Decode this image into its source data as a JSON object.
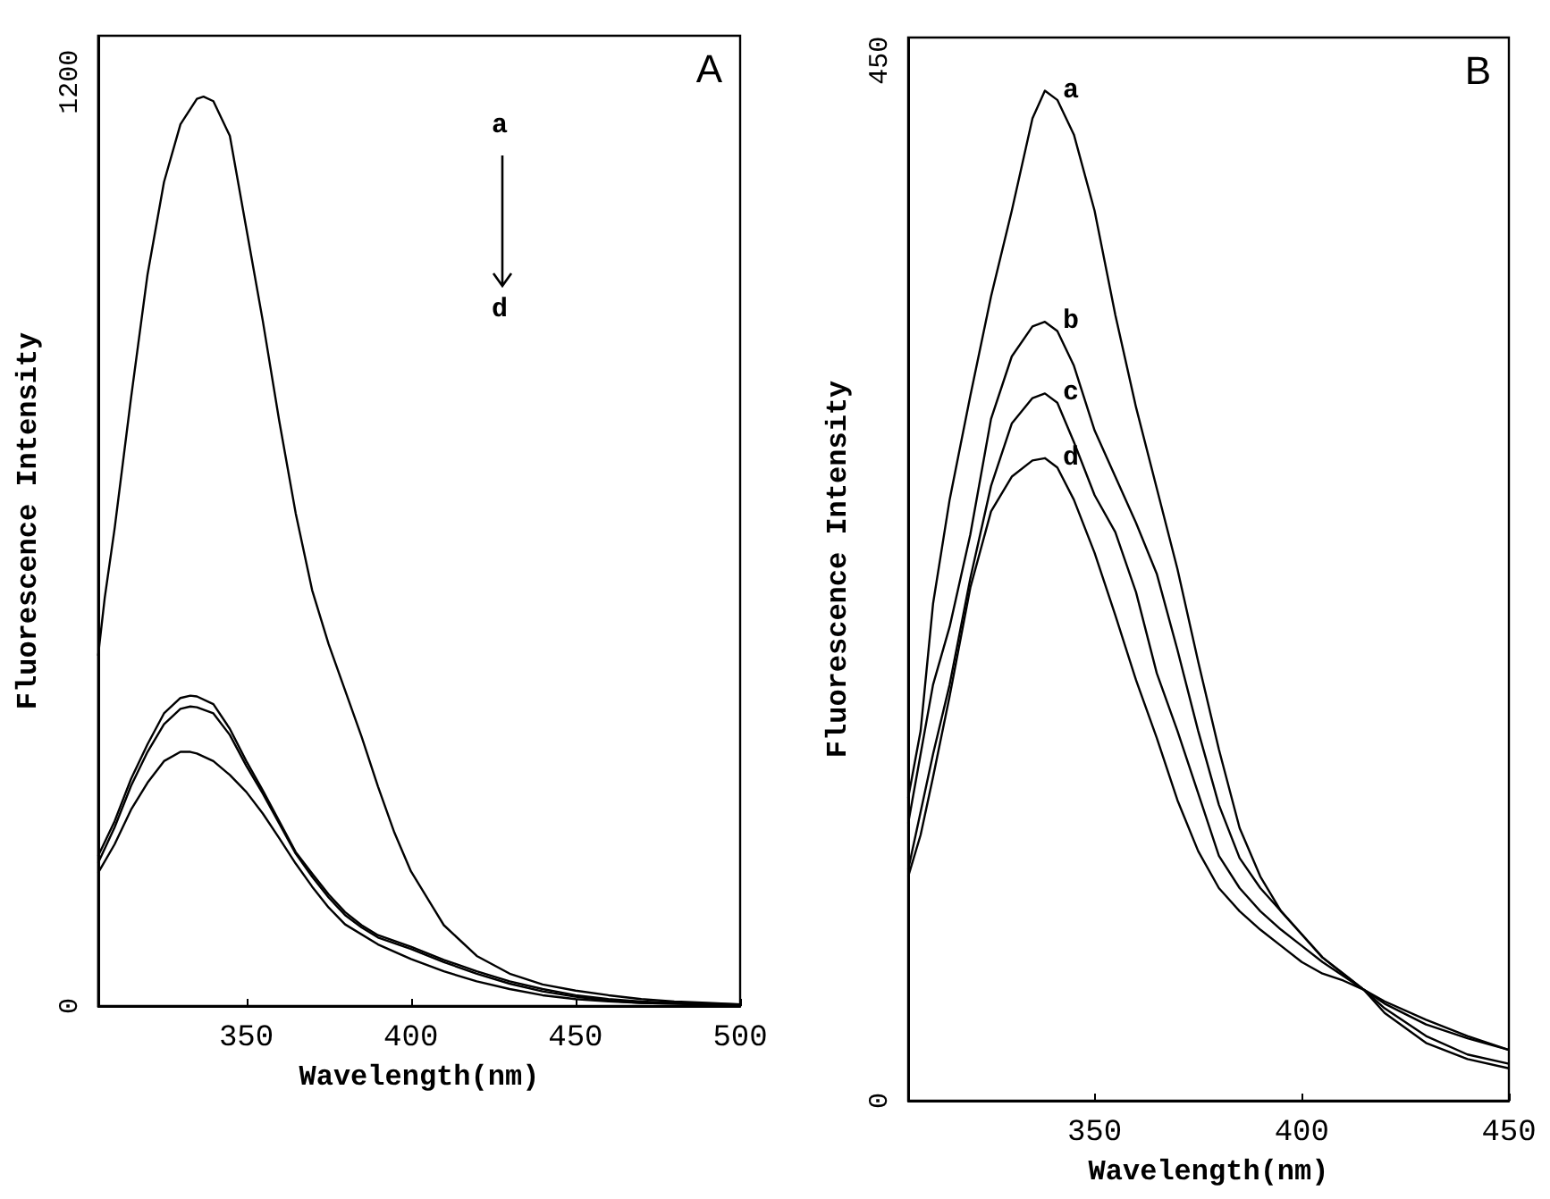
{
  "chart_data": [
    {
      "type": "line",
      "xlabel": "Wavelength(nm)",
      "ylabel": "Fluorescence Intensity",
      "annotations": [
        "A",
        "a",
        "d"
      ],
      "xlim": [
        305,
        500
      ],
      "xticks": [
        350,
        400,
        450,
        500
      ],
      "ylim": [
        0,
        1260
      ],
      "yticks": [
        0,
        1200
      ],
      "grid": false,
      "series": [
        {
          "color": "#000000",
          "x": [
            305,
            307,
            310,
            315,
            320,
            325,
            330,
            335,
            337,
            340,
            345,
            350,
            355,
            360,
            365,
            370,
            375,
            380,
            385,
            390,
            395,
            400,
            410,
            420,
            430,
            440,
            450,
            460,
            470,
            480,
            490,
            500
          ],
          "values": [
            455,
            530,
            620,
            790,
            950,
            1070,
            1145,
            1178,
            1181,
            1175,
            1130,
            1010,
            890,
            760,
            640,
            540,
            470,
            410,
            350,
            285,
            225,
            175,
            105,
            65,
            42,
            28,
            20,
            14,
            9,
            6,
            4,
            2
          ]
        },
        {
          "color": "#000000",
          "x": [
            305,
            310,
            315,
            320,
            325,
            330,
            333,
            335,
            340,
            345,
            350,
            355,
            360,
            365,
            370,
            375,
            380,
            385,
            390,
            400,
            410,
            420,
            430,
            440,
            450,
            460,
            470,
            480,
            490,
            500
          ],
          "values": [
            195,
            240,
            295,
            340,
            380,
            400,
            403,
            402,
            392,
            360,
            318,
            280,
            240,
            200,
            172,
            145,
            122,
            105,
            92,
            77,
            60,
            45,
            32,
            22,
            14,
            9,
            6,
            4,
            3,
            2
          ]
        },
        {
          "color": "#000000",
          "x": [
            305,
            310,
            315,
            320,
            325,
            330,
            333,
            335,
            340,
            345,
            350,
            355,
            360,
            365,
            370,
            375,
            380,
            385,
            390,
            400,
            410,
            420,
            430,
            440,
            450,
            460,
            470,
            480,
            490,
            500
          ],
          "values": [
            186,
            232,
            286,
            330,
            366,
            386,
            389,
            388,
            380,
            352,
            312,
            276,
            237,
            198,
            168,
            141,
            118,
            102,
            89,
            74,
            57,
            42,
            29,
            19,
            12,
            7,
            4,
            3,
            2,
            1
          ]
        },
        {
          "color": "#000000",
          "x": [
            305,
            310,
            315,
            320,
            325,
            330,
            333,
            335,
            340,
            345,
            350,
            355,
            360,
            365,
            370,
            375,
            380,
            390,
            400,
            410,
            420,
            430,
            440,
            450,
            460,
            470,
            480,
            490,
            500
          ],
          "values": [
            173,
            210,
            255,
            290,
            318,
            330,
            330,
            328,
            318,
            300,
            278,
            250,
            218,
            185,
            155,
            128,
            106,
            80,
            61,
            45,
            32,
            22,
            14,
            9,
            6,
            4,
            3,
            2,
            1
          ]
        }
      ]
    },
    {
      "type": "line",
      "xlabel": "Wavelength(nm)",
      "ylabel": "Fluorescence Intensity",
      "annotations": [
        "B"
      ],
      "xlim": [
        305,
        450
      ],
      "xticks": [
        350,
        400,
        450
      ],
      "ylim": [
        0,
        460
      ],
      "yticks": [
        0,
        450
      ],
      "grid": false,
      "series": [
        {
          "name": "a",
          "color": "#000000",
          "x": [
            305,
            308,
            311,
            315,
            320,
            325,
            330,
            335,
            338,
            341,
            345,
            350,
            355,
            360,
            365,
            370,
            375,
            380,
            385,
            390,
            395,
            400,
            405,
            410,
            415,
            420,
            430,
            440,
            450
          ],
          "values": [
            131,
            160,
            215,
            260,
            305,
            348,
            385,
            425,
            437,
            433,
            418,
            385,
            340,
            300,
            265,
            230,
            190,
            152,
            118,
            97,
            82,
            72,
            62,
            55,
            48,
            42,
            33,
            27,
            22
          ]
        },
        {
          "name": "b",
          "color": "#000000",
          "x": [
            305,
            308,
            311,
            315,
            320,
            325,
            330,
            335,
            338,
            341,
            345,
            350,
            355,
            360,
            365,
            370,
            375,
            380,
            385,
            390,
            395,
            400,
            405,
            410,
            415,
            420,
            430,
            440,
            450
          ],
          "values": [
            120,
            150,
            180,
            205,
            245,
            295,
            322,
            335,
            337,
            333,
            318,
            290,
            270,
            250,
            228,
            195,
            160,
            128,
            105,
            92,
            82,
            72,
            62,
            55,
            48,
            43,
            35,
            28,
            22
          ]
        },
        {
          "name": "c",
          "color": "#000000",
          "x": [
            305,
            308,
            311,
            315,
            320,
            325,
            330,
            335,
            338,
            341,
            345,
            350,
            355,
            360,
            365,
            370,
            375,
            380,
            385,
            390,
            395,
            400,
            405,
            410,
            415,
            420,
            430,
            440,
            450
          ],
          "values": [
            100,
            125,
            150,
            180,
            226,
            266,
            293,
            304,
            306,
            302,
            285,
            262,
            246,
            220,
            185,
            160,
            133,
            106,
            92,
            82,
            74,
            67,
            60,
            54,
            48,
            40,
            28,
            20,
            16
          ]
        },
        {
          "name": "d",
          "color": "#000000",
          "x": [
            305,
            308,
            311,
            315,
            320,
            325,
            330,
            335,
            338,
            341,
            345,
            350,
            355,
            360,
            365,
            370,
            375,
            380,
            385,
            390,
            395,
            400,
            405,
            410,
            415,
            420,
            430,
            440,
            450
          ],
          "values": [
            97,
            115,
            140,
            175,
            222,
            255,
            270,
            277,
            278,
            274,
            260,
            237,
            210,
            182,
            157,
            130,
            108,
            92,
            82,
            74,
            67,
            60,
            55,
            52,
            48,
            38,
            25,
            18,
            14
          ]
        }
      ]
    }
  ]
}
